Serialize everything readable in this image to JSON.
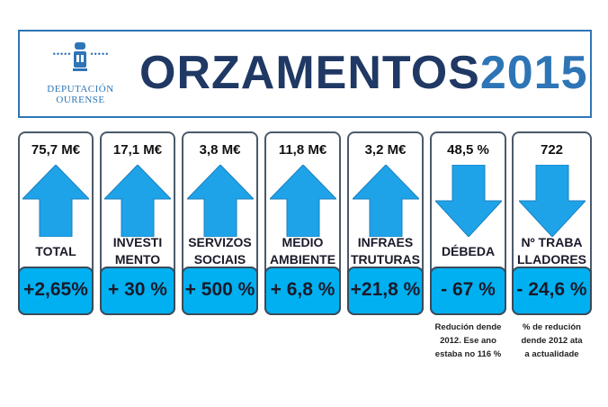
{
  "header": {
    "logo_line1": "DEPUTACIÓN",
    "logo_line2": "OURENSE",
    "title_main": "ORZAMENTOS",
    "title_year": "2015"
  },
  "colors": {
    "arrow": "#1fa3e8",
    "box": "#00b0f0",
    "title": "#1f3864",
    "year": "#2e75b6"
  },
  "cards": [
    {
      "value": "75,7 M€",
      "label": [
        "TOTAL"
      ],
      "direction": "up",
      "change": "+2,65%"
    },
    {
      "value": "17,1 M€",
      "label": [
        "INVESTI",
        "MENTO"
      ],
      "direction": "up",
      "change": "+ 30 %"
    },
    {
      "value": "3,8 M€",
      "label": [
        "SERVIZOS",
        "SOCIAIS"
      ],
      "direction": "up",
      "change": "+ 500 %"
    },
    {
      "value": "11,8 M€",
      "label": [
        "MEDIO",
        "AMBIENTE"
      ],
      "direction": "up",
      "change": "+ 6,8 %"
    },
    {
      "value": "3,2 M€",
      "label": [
        "INFRAES",
        "TRUTURAS"
      ],
      "direction": "up",
      "change": "+21,8 %"
    },
    {
      "value": "48,5 %",
      "label": [
        "DÉBEDA"
      ],
      "direction": "down",
      "change": "- 67 %",
      "note": [
        "Redución dende",
        "2012. Ese ano",
        "estaba no 116 %"
      ]
    },
    {
      "value": "722",
      "label": [
        "Nº TRABA",
        "LLADORES"
      ],
      "direction": "down",
      "change": "- 24,6 %",
      "note": [
        "% de redución",
        "dende 2012 ata",
        "a actualidade"
      ]
    }
  ]
}
